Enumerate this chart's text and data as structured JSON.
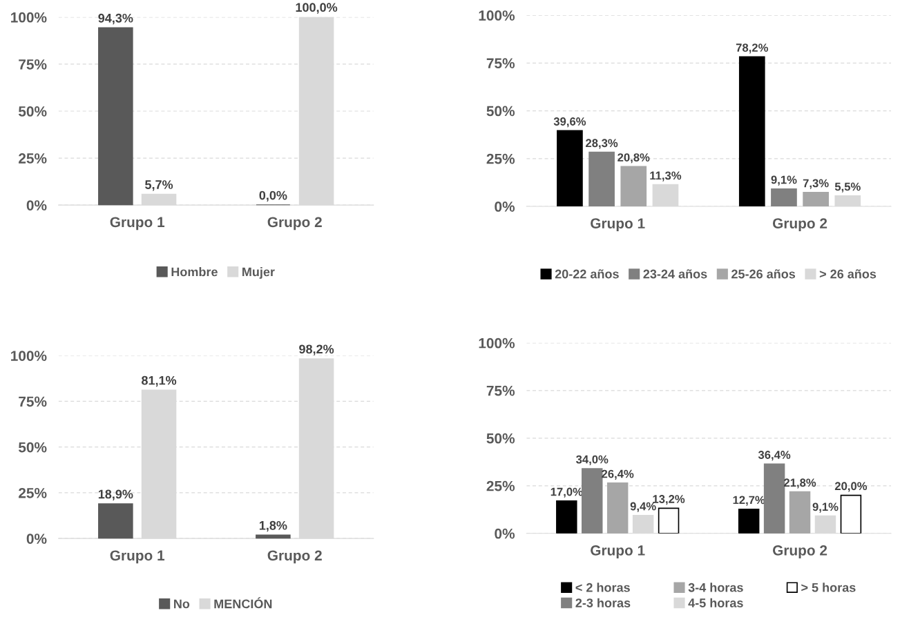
{
  "chart_data": [
    {
      "type": "bar",
      "categories": [
        "Grupo 1",
        "Grupo 2"
      ],
      "ylim": [
        0,
        100
      ],
      "yticks": [
        {
          "value": 0,
          "label": "0%"
        },
        {
          "value": 25,
          "label": "25%"
        },
        {
          "value": 50,
          "label": "50%"
        },
        {
          "value": 75,
          "label": "75%"
        },
        {
          "value": 100,
          "label": "100%"
        }
      ],
      "grid": "y",
      "legend": "bottom",
      "series": [
        {
          "name": "Hombre",
          "color": "#595959",
          "values": [
            94.3,
            0.0
          ],
          "value_labels": [
            "94,3%",
            "0,0%"
          ]
        },
        {
          "name": "Mujer",
          "color": "#d9d9d9",
          "values": [
            5.7,
            100.0
          ],
          "value_labels": [
            "5,7%",
            "100,0%"
          ]
        }
      ]
    },
    {
      "type": "bar",
      "categories": [
        "Grupo 1",
        "Grupo 2"
      ],
      "ylim": [
        0,
        100
      ],
      "yticks": [
        {
          "value": 0,
          "label": "0%"
        },
        {
          "value": 25,
          "label": "25%"
        },
        {
          "value": 50,
          "label": "50%"
        },
        {
          "value": 75,
          "label": "75%"
        },
        {
          "value": 100,
          "label": "100%"
        }
      ],
      "grid": "y",
      "legend": "bottom",
      "series": [
        {
          "name": "20-22 años",
          "color": "#000000",
          "values": [
            39.6,
            78.2
          ],
          "value_labels": [
            "39,6%",
            "78,2%"
          ]
        },
        {
          "name": "23-24 años",
          "color": "#808080",
          "values": [
            28.3,
            9.1
          ],
          "value_labels": [
            "28,3%",
            "9,1%"
          ]
        },
        {
          "name": "25-26 años",
          "color": "#a6a6a6",
          "values": [
            20.8,
            7.3
          ],
          "value_labels": [
            "20,8%",
            "7,3%"
          ]
        },
        {
          "name": "> 26 años",
          "color": "#d9d9d9",
          "values": [
            11.3,
            5.5
          ],
          "value_labels": [
            "11,3%",
            "5,5%"
          ]
        }
      ]
    },
    {
      "type": "bar",
      "categories": [
        "Grupo 1",
        "Grupo 2"
      ],
      "ylim": [
        0,
        100
      ],
      "yticks": [
        {
          "value": 0,
          "label": "0%"
        },
        {
          "value": 25,
          "label": "25%"
        },
        {
          "value": 50,
          "label": "50%"
        },
        {
          "value": 75,
          "label": "75%"
        },
        {
          "value": 100,
          "label": "100%"
        }
      ],
      "grid": "y",
      "legend": "bottom",
      "series": [
        {
          "name": "No",
          "color": "#595959",
          "values": [
            18.9,
            1.8
          ],
          "value_labels": [
            "18,9%",
            "1,8%"
          ]
        },
        {
          "name": "MENCIÓN",
          "color": "#d9d9d9",
          "values": [
            81.1,
            98.2
          ],
          "value_labels": [
            "81,1%",
            "98,2%"
          ]
        }
      ]
    },
    {
      "type": "bar",
      "categories": [
        "Grupo 1",
        "Grupo 2"
      ],
      "ylim": [
        0,
        100
      ],
      "yticks": [
        {
          "value": 0,
          "label": "0%"
        },
        {
          "value": 25,
          "label": "25%"
        },
        {
          "value": 50,
          "label": "50%"
        },
        {
          "value": 75,
          "label": "75%"
        },
        {
          "value": 100,
          "label": "100%"
        }
      ],
      "grid": "y",
      "legend": "bottom",
      "series": [
        {
          "name": "< 2 horas",
          "color": "#000000",
          "values": [
            17.0,
            12.7
          ],
          "value_labels": [
            "17,0%",
            "12,7%"
          ]
        },
        {
          "name": "2-3 horas",
          "color": "#808080",
          "values": [
            34.0,
            36.4
          ],
          "value_labels": [
            "34,0%",
            "36,4%"
          ]
        },
        {
          "name": "3-4 horas",
          "color": "#a6a6a6",
          "values": [
            26.4,
            21.8
          ],
          "value_labels": [
            "26,4%",
            "21,8%"
          ]
        },
        {
          "name": "4-5 horas",
          "color": "#d9d9d9",
          "values": [
            9.4,
            9.1
          ],
          "value_labels": [
            "9,4%",
            "9,1%"
          ]
        },
        {
          "name": "> 5 horas",
          "color": "#ffffff",
          "values": [
            13.2,
            20.0
          ],
          "value_labels": [
            "13,2%",
            "20,0%"
          ]
        }
      ]
    }
  ]
}
